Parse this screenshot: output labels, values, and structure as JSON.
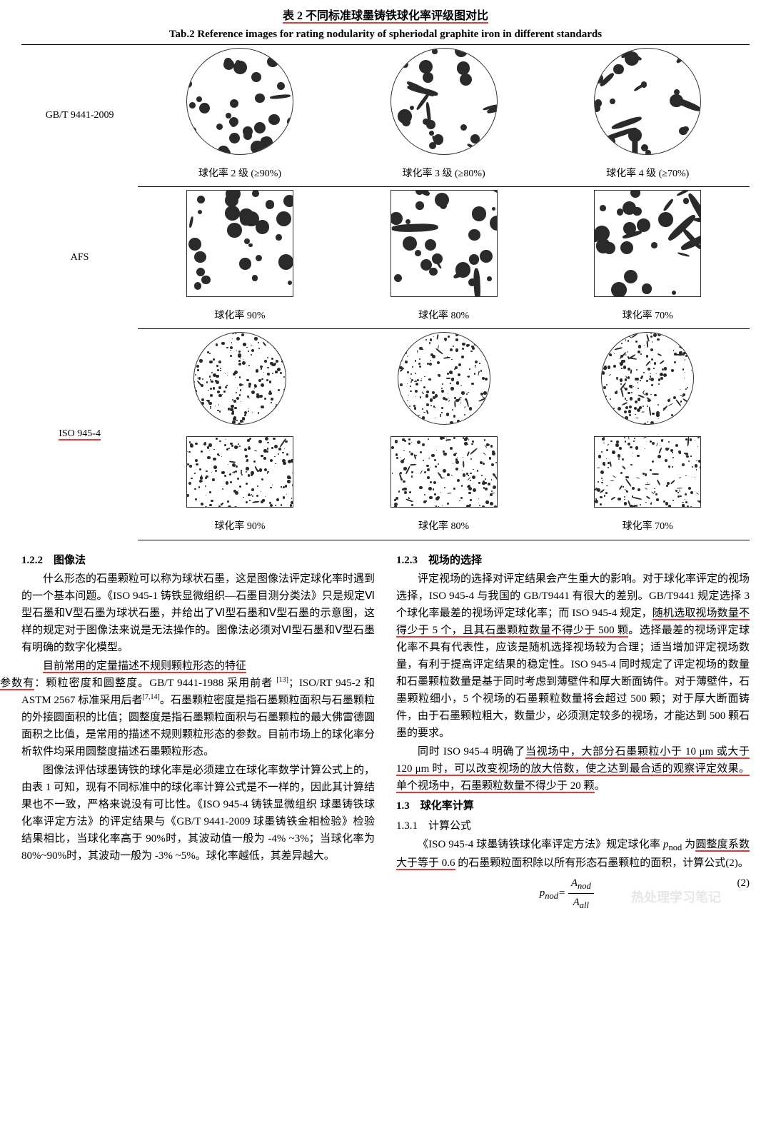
{
  "tableCaption": {
    "cn": "表 2 不同标准球墨铸铁球化率评级图对比",
    "en": "Tab.2 Reference images for rating nodularity of spheriodal graphite iron in different standards"
  },
  "table": {
    "rows": [
      {
        "label": "GB/T 9441-2009",
        "captions": [
          "球化率 2 级 (≥90%)",
          "球化率 3 级 (≥80%)",
          "球化率 4 级 (≥70%)"
        ]
      },
      {
        "label": "AFS",
        "captions": [
          "球化率 90%",
          "球化率 80%",
          "球化率 70%"
        ]
      },
      {
        "label": "ISO 945-4",
        "captions": [
          "球化率 90%",
          "球化率 80%",
          "球化率 70%"
        ]
      }
    ]
  },
  "leftCol": {
    "h1": "1.2.2　图像法",
    "p1": "什么形态的石墨颗粒可以称为球状石墨，这是图像法评定球化率时遇到的一个基本问题。《ISO 945-1 铸铁显微组织—石墨目测分类法》只是规定Ⅵ型石墨和Ⅴ型石墨为球状石墨，并给出了Ⅵ型石墨和Ⅴ型石墨的示意图，这样的规定对于图像法来说是无法操作的。图像法必须对Ⅵ型石墨和Ⅴ型石墨有明确的数字化模型。",
    "p2a": "目前常用的定量描述不规则颗粒形态的特征",
    "p2b": "参数有",
    "p2c": "：颗粒密度和圆整度。GB/T 9441-1988 采用前者 ",
    "p2d": "；ISO/RT 945-2 和 ASTM 2567 标准采用后者",
    "p2e": "。石墨颗粒密度是指石墨颗粒面积与石墨颗粒的外接圆面积的比值；圆整度是指石墨颗粒面积与石墨颗粒的最大佛雷德圆面积之比值，是常用的描述不规则颗粒形态的参数。目前市场上的球化率分析软件均采用圆整度描述石墨颗粒形态。",
    "sup1": "[13]",
    "sup2": "[7,14]",
    "p3": "图像法评估球墨铸铁的球化率是必须建立在球化率数学计算公式上的，由表 1 可知，现有不同标准中的球化率计算公式是不一样的，因此其计算结果也不一致，严格来说没有可比性。《ISO 945-4 铸铁显微组织 球墨铸铁球化率评定方法》的评定结果与《GB/T 9441-2009 球墨铸铁金相检验》检验结果相比，当球化率高于 90%时，其波动值一般为 -4% ~3%；当球化率为 80%~90%时，其波动一般为 -3% ~5%。球化率越低，其差异越大。"
  },
  "rightCol": {
    "h1": "1.2.3　视场的选择",
    "p1a": "评定视场的选择对评定结果会产生重大的影响。对于球化率评定的视场选择，ISO 945-4 与我国的 GB/T9441 有很大的差别。GB/T9441 规定选择 3 个球化率最差的视场评定球化率；而 ISO 945-4 规定，",
    "p1u": "随机选取视场数量不得少于 5 个，且其石墨颗粒数量不得少于 500 颗",
    "p1b": "。选择最差的视场评定球化率不具有代表性，应该是随机选择视场较为合理；适当增加评定视场数量，有利于提高评定结果的稳定性。ISO 945-4 同时规定了评定视场的数量和石墨颗粒数量是基于同时考虑到薄壁件和厚大断面铸件。对于薄壁件，石墨颗粒细小，5 个视场的石墨颗粒数量将会超过 500 颗；对于厚大断面铸件，由于石墨颗粒粗大，数量少，必须测定较多的视场，才能达到 500 颗石墨的要求。",
    "p2a": "同时 ISO 945-4 明确了",
    "p2u": "当视场中，大部分石墨颗粒小于 10 μm 或大于 120 μm 时，可以改变视场的放大倍数，使之达到最合适的观察评定效果。单个视场中，石墨颗粒数量不得少于 20 颗",
    "p2b": "。",
    "h2": "1.3　球化率计算",
    "h3": "1.3.1　计算公式",
    "p3a": "《ISO 945-4 球墨铸铁球化率评定方法》规定球化率 ",
    "p3var": "p",
    "p3sub": "nod",
    "p3b": " 为",
    "p3u": "圆整度系数大于等于 0.6",
    "p3c": " 的石墨颗粒面积除以所有形态石墨颗粒的面积，计算公式(2)。",
    "formula": {
      "lhs": "p",
      "lhssub": "nod",
      "eq": "=",
      "numTop": "A",
      "numTopSub": "nod",
      "numBot": "A",
      "numBotSub": "all",
      "eqno": "(2)"
    }
  },
  "watermark": "热处理学习笔记"
}
